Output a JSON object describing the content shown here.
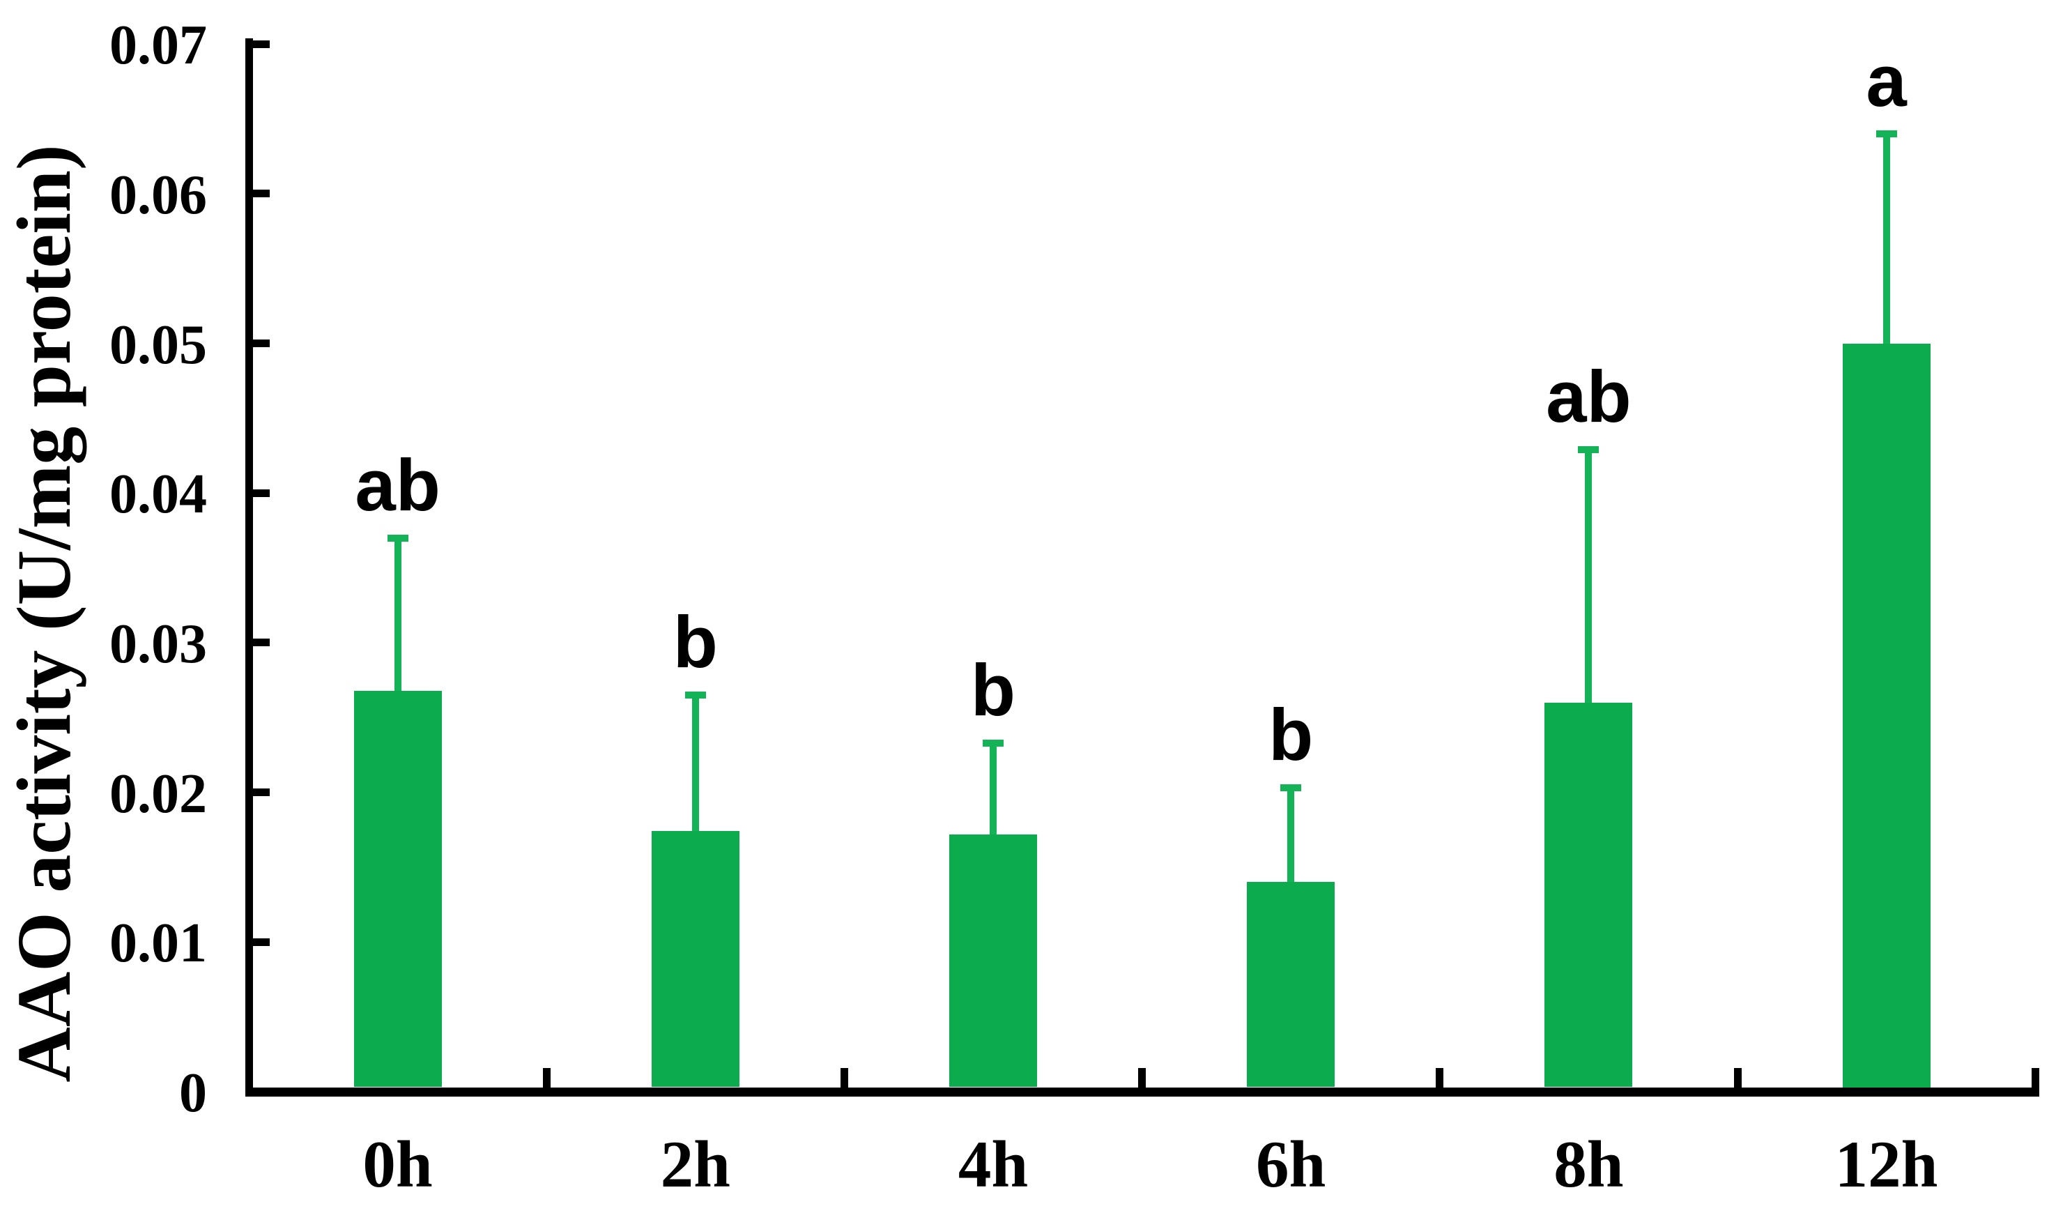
{
  "chart_data": {
    "type": "bar",
    "title": "",
    "xlabel": "",
    "ylabel": "AAO activity （U/mg protein）",
    "categories": [
      "0h",
      "2h",
      "4h",
      "6h",
      "8h",
      "12h"
    ],
    "series": [
      {
        "name": "AAO activity",
        "values": [
          0.0268,
          0.0174,
          0.0172,
          0.014,
          0.026,
          0.05
        ],
        "error_bar_tops": [
          0.037,
          0.0265,
          0.0233,
          0.0203,
          0.0429,
          0.064
        ],
        "error_sd": [
          0.0102,
          0.0091,
          0.0061,
          0.0063,
          0.0169,
          0.014
        ]
      }
    ],
    "significance_letters": [
      "ab",
      "b",
      "b",
      "b",
      "ab",
      "a"
    ],
    "yticks": [
      0,
      0.01,
      0.02,
      0.03,
      0.04,
      0.05,
      0.06,
      0.07
    ],
    "ytick_labels": [
      "0",
      "0.01",
      "0.02",
      "0.03",
      "0.04",
      "0.05",
      "0.06",
      "0.07"
    ],
    "ylim": [
      0,
      0.07
    ],
    "grid": false,
    "legend_position": "none",
    "bar_color": "#0BAB4E",
    "error_bar_color": "#15B357",
    "axis_color": "#000000",
    "text_color": "#000000",
    "background_color": "#FFFFFF",
    "tick_direction": "inside"
  }
}
